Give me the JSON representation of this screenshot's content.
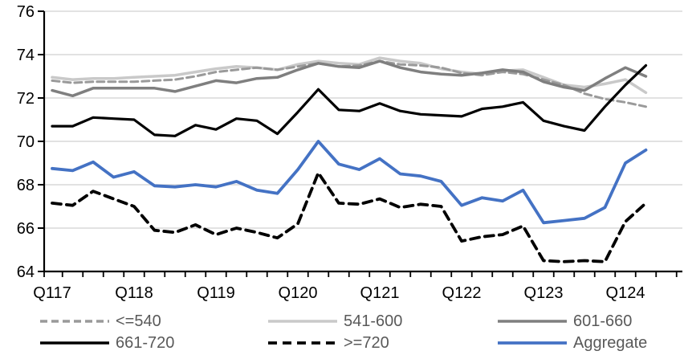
{
  "chart_data": {
    "type": "line",
    "title": "",
    "xlabel": "",
    "ylabel": "",
    "ylim": [
      64,
      76
    ],
    "yticks": [
      64,
      66,
      68,
      70,
      72,
      74,
      76
    ],
    "grid": true,
    "legend_position": "bottom",
    "x_tick_labels": [
      "Q117",
      "Q118",
      "Q119",
      "Q120",
      "Q121",
      "Q122",
      "Q123",
      "Q124"
    ],
    "categories": [
      "Q117",
      "Q217",
      "Q317",
      "Q417",
      "Q118",
      "Q218",
      "Q318",
      "Q418",
      "Q119",
      "Q219",
      "Q319",
      "Q419",
      "Q120",
      "Q220",
      "Q320",
      "Q420",
      "Q121",
      "Q221",
      "Q321",
      "Q421",
      "Q122",
      "Q222",
      "Q322",
      "Q422",
      "Q123",
      "Q223",
      "Q323",
      "Q423",
      "Q124",
      "Q224"
    ],
    "series": [
      {
        "name": "<=540",
        "color": "#9a9a9a",
        "dash": "9,5",
        "width": 3,
        "values": [
          72.8,
          72.7,
          72.75,
          72.75,
          72.75,
          72.8,
          72.85,
          73.0,
          73.2,
          73.3,
          73.4,
          73.3,
          73.45,
          73.6,
          73.45,
          73.5,
          73.7,
          73.55,
          73.5,
          73.4,
          73.15,
          73.05,
          73.2,
          73.1,
          72.85,
          72.6,
          72.2,
          71.95,
          71.8,
          71.6
        ]
      },
      {
        "name": "541-600",
        "color": "#c9c9c9",
        "dash": "",
        "width": 3.5,
        "values": [
          72.95,
          72.85,
          72.9,
          72.9,
          72.95,
          73.0,
          73.05,
          73.2,
          73.35,
          73.45,
          73.4,
          73.3,
          73.55,
          73.7,
          73.6,
          73.55,
          73.85,
          73.7,
          73.6,
          73.35,
          73.2,
          73.1,
          73.25,
          73.3,
          72.95,
          72.6,
          72.5,
          72.65,
          72.85,
          72.25
        ]
      },
      {
        "name": "601-660",
        "color": "#7f7f7f",
        "dash": "",
        "width": 3.5,
        "values": [
          72.35,
          72.1,
          72.45,
          72.45,
          72.45,
          72.45,
          72.3,
          72.55,
          72.8,
          72.7,
          72.9,
          72.95,
          73.3,
          73.6,
          73.45,
          73.4,
          73.7,
          73.4,
          73.2,
          73.1,
          73.05,
          73.15,
          73.3,
          73.2,
          72.75,
          72.5,
          72.35,
          72.9,
          73.4,
          73.0
        ]
      },
      {
        "name": "661-720",
        "color": "#000000",
        "dash": "",
        "width": 3.2,
        "values": [
          70.7,
          70.7,
          71.1,
          71.05,
          71.0,
          70.3,
          70.25,
          70.75,
          70.55,
          71.05,
          70.95,
          70.35,
          71.35,
          72.4,
          71.45,
          71.4,
          71.75,
          71.4,
          71.25,
          71.2,
          71.15,
          71.5,
          71.6,
          71.8,
          70.95,
          70.7,
          70.5,
          71.6,
          72.6,
          73.5
        ]
      },
      {
        "name": ">=720",
        "color": "#000000",
        "dash": "11,7",
        "width": 3.8,
        "values": [
          67.15,
          67.05,
          67.7,
          67.35,
          67.0,
          65.9,
          65.8,
          66.15,
          65.7,
          66.0,
          65.8,
          65.55,
          66.2,
          68.55,
          67.15,
          67.1,
          67.35,
          66.95,
          67.1,
          67.0,
          65.4,
          65.6,
          65.7,
          66.1,
          64.5,
          64.45,
          64.5,
          64.45,
          66.3,
          67.15
        ]
      },
      {
        "name": "Aggregate",
        "color": "#4472c4",
        "dash": "",
        "width": 3.8,
        "values": [
          68.75,
          68.65,
          69.05,
          68.35,
          68.6,
          67.95,
          67.9,
          68.0,
          67.9,
          68.15,
          67.75,
          67.6,
          68.7,
          70.0,
          68.95,
          68.7,
          69.2,
          68.5,
          68.4,
          68.15,
          67.05,
          67.4,
          67.25,
          67.75,
          66.25,
          66.35,
          66.45,
          66.95,
          69.0,
          69.6
        ]
      }
    ],
    "axis_color": "#000000",
    "gridline_color": "#d9d9d9",
    "tick_label_color": "#000000",
    "legend_text_color": "#595959"
  },
  "legend": {
    "row1": [
      "<=540",
      "541-600",
      "601-660"
    ],
    "row2": [
      "661-720",
      ">=720",
      "Aggregate"
    ]
  }
}
